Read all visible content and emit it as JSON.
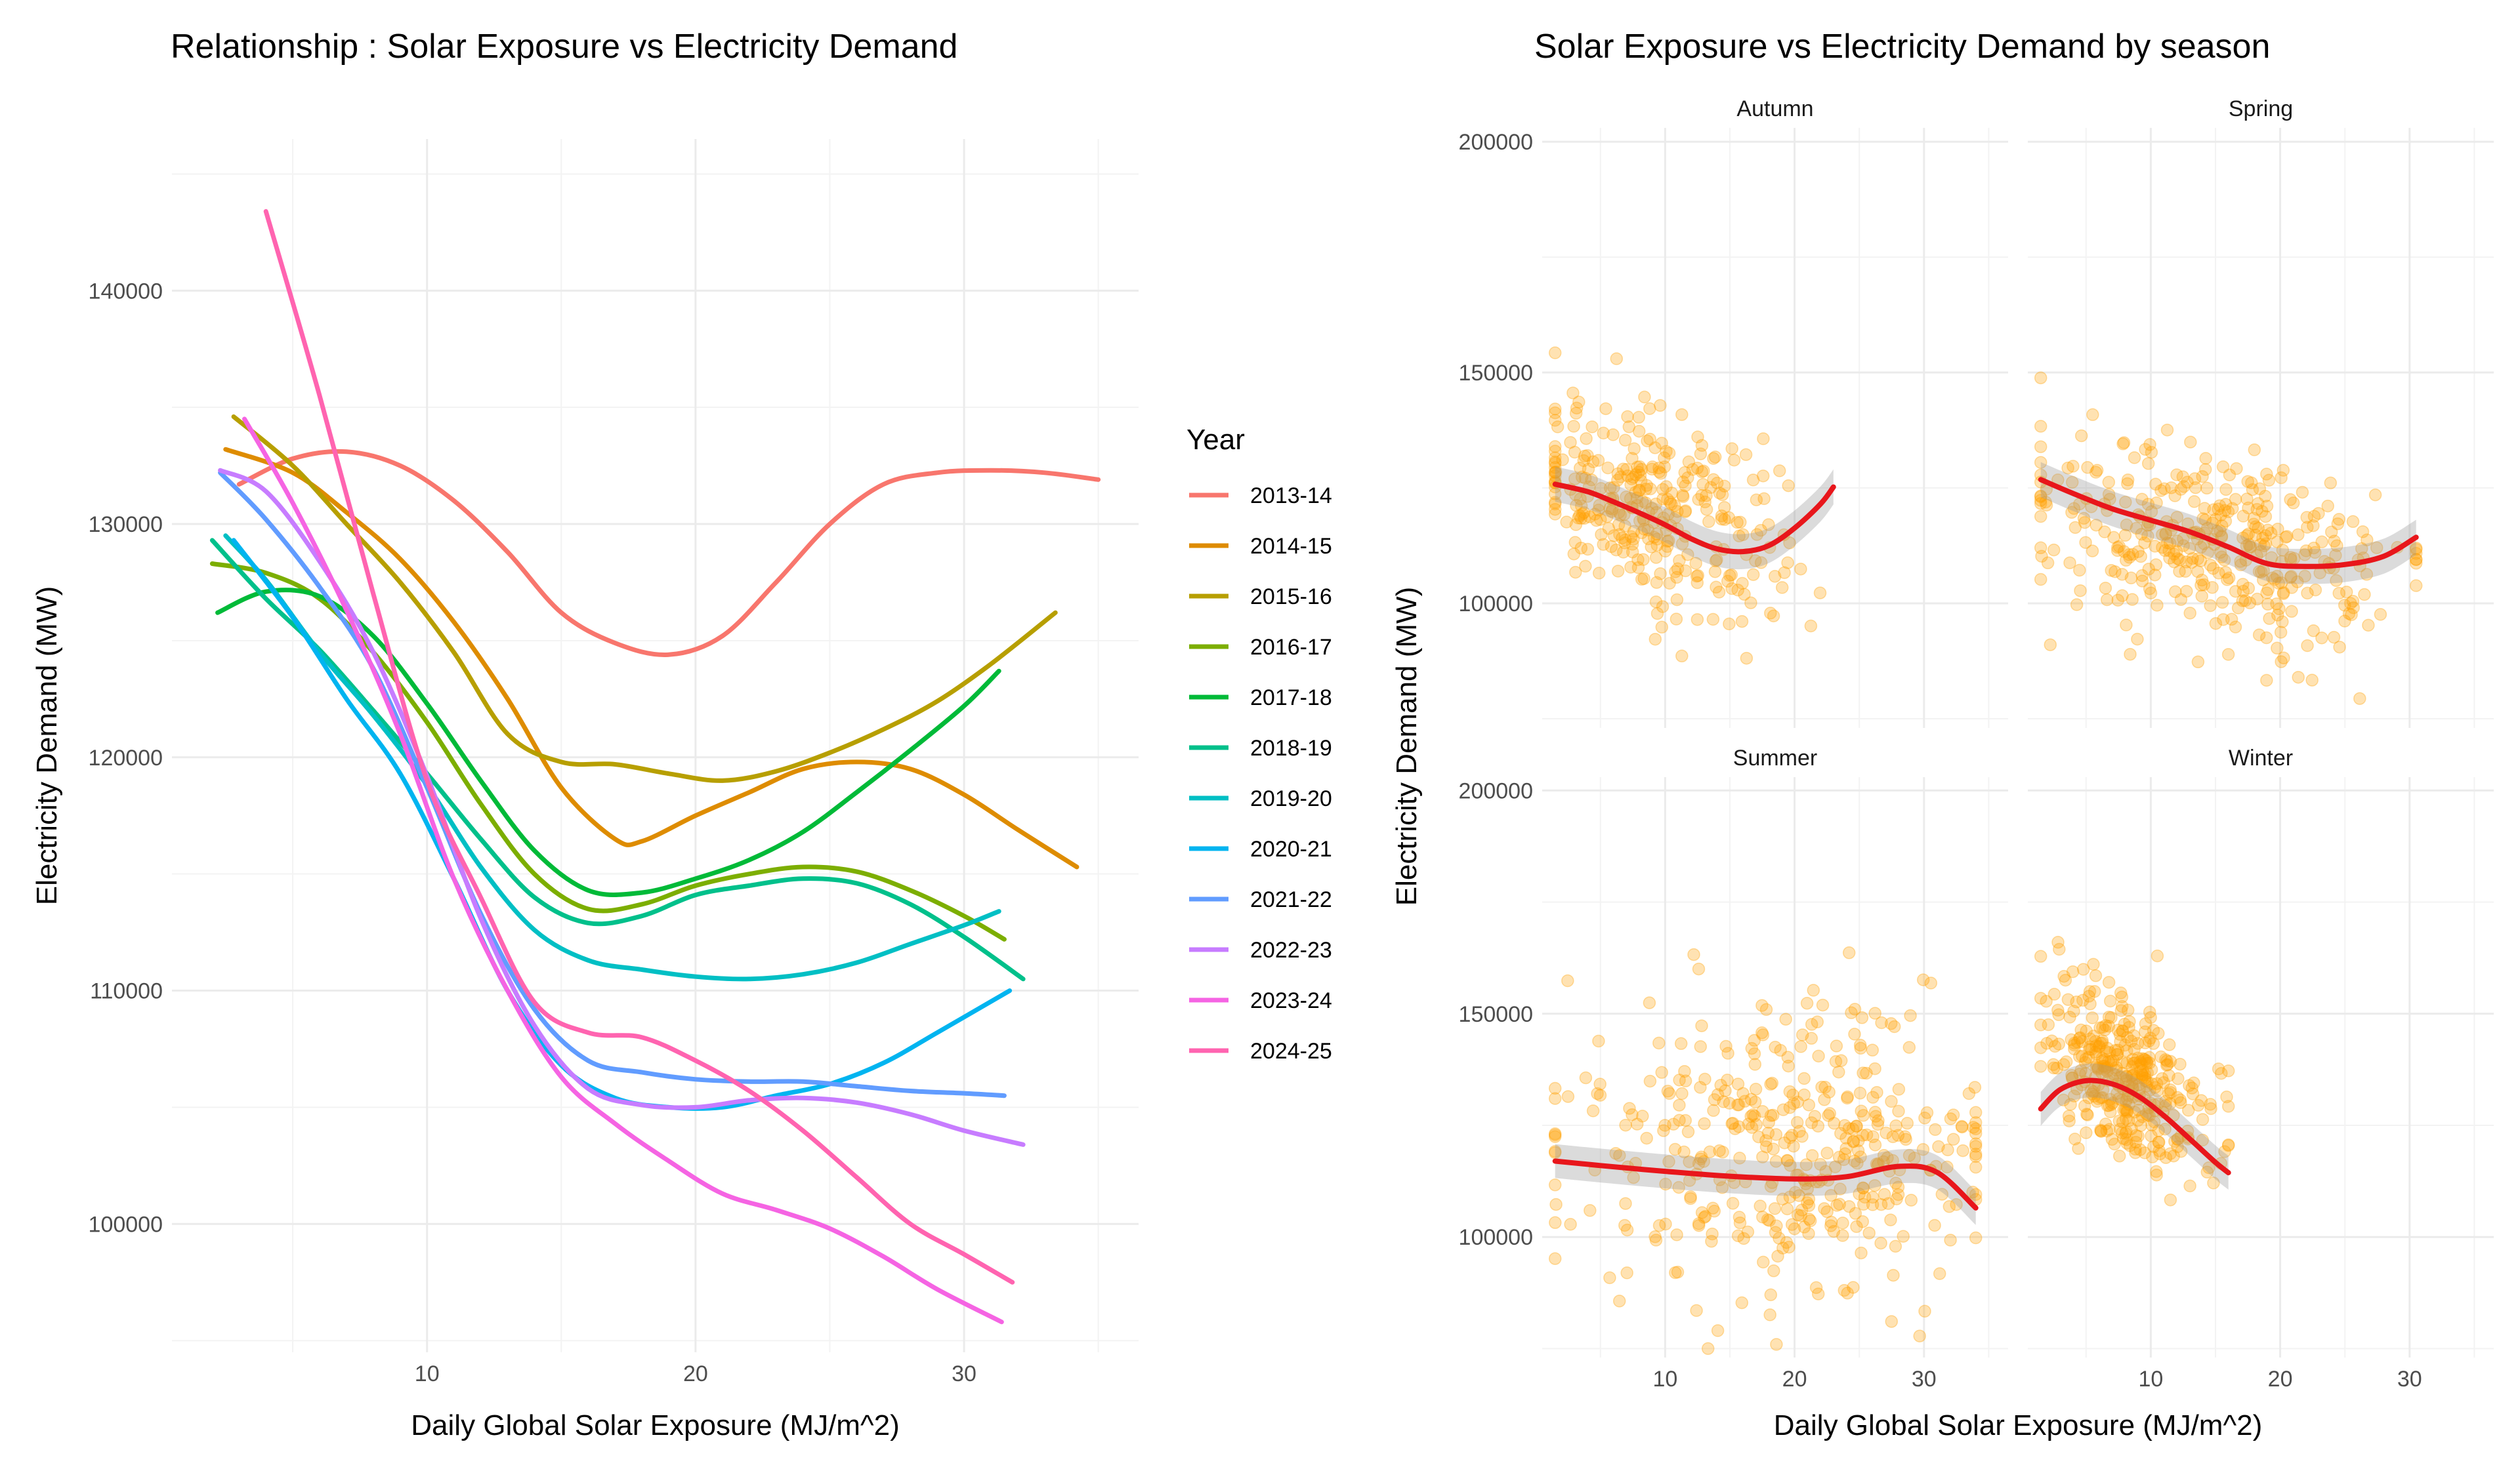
{
  "chart_data": [
    {
      "type": "line",
      "title": "Relationship : Solar Exposure vs Electricity Demand",
      "xlabel": "Daily Global Solar Exposure (MJ/m^2)",
      "ylabel": "Electricity Demand (MW)",
      "xlim": [
        0.5,
        36.5
      ],
      "ylim": [
        94500,
        146500
      ],
      "x_ticks": [
        10,
        20,
        30
      ],
      "y_ticks": [
        100000,
        110000,
        120000,
        130000,
        140000
      ],
      "y_tick_labels": [
        "100000",
        "110000",
        "120000",
        "130000",
        "140000"
      ],
      "grid": true,
      "legend": {
        "title": "Year",
        "position": "right"
      },
      "series": [
        {
          "name": "2013-14",
          "color": "#F8766D",
          "x": [
            3,
            5,
            7,
            9,
            11,
            13,
            15,
            17,
            19,
            21,
            23,
            25,
            27,
            29,
            31,
            33,
            35
          ],
          "y": [
            131700,
            132800,
            133100,
            132500,
            131000,
            128800,
            126200,
            124900,
            124400,
            125200,
            127500,
            130000,
            131700,
            132200,
            132300,
            132200,
            131900
          ]
        },
        {
          "name": "2014-15",
          "color": "#DE8C00",
          "x": [
            2.5,
            5,
            7,
            9,
            11,
            13,
            15,
            17,
            18,
            20,
            22,
            24,
            26,
            28,
            30,
            32,
            34.2
          ],
          "y": [
            133200,
            132200,
            130500,
            128500,
            125800,
            122500,
            118700,
            116500,
            116400,
            117500,
            118500,
            119500,
            119800,
            119500,
            118400,
            116900,
            115300
          ]
        },
        {
          "name": "2015-16",
          "color": "#B79F00",
          "x": [
            2.8,
            5,
            7,
            9,
            11,
            13,
            15,
            17,
            19,
            21,
            23,
            25,
            27,
            29,
            31,
            33.4
          ],
          "y": [
            134600,
            132500,
            130000,
            127500,
            124500,
            121000,
            119800,
            119700,
            119300,
            119000,
            119400,
            120200,
            121200,
            122400,
            124000,
            126200
          ]
        },
        {
          "name": "2016-17",
          "color": "#7CAE00",
          "x": [
            2,
            4,
            6,
            8,
            10,
            12,
            14,
            16,
            18,
            20,
            22,
            24,
            26,
            28,
            30,
            31.5
          ],
          "y": [
            128300,
            127900,
            126800,
            124500,
            121500,
            118000,
            115000,
            113500,
            113700,
            114500,
            115000,
            115300,
            115100,
            114300,
            113200,
            112200
          ]
        },
        {
          "name": "2017-18",
          "color": "#00BA38",
          "x": [
            2.2,
            4,
            6,
            8,
            10,
            12,
            14,
            16,
            18,
            20,
            22,
            24,
            26,
            28,
            30,
            31.3
          ],
          "y": [
            126200,
            127100,
            126900,
            125200,
            122300,
            119000,
            116000,
            114300,
            114200,
            114800,
            115600,
            116800,
            118500,
            120300,
            122200,
            123700
          ]
        },
        {
          "name": "2018-19",
          "color": "#00C08B",
          "x": [
            2,
            4,
            6,
            8,
            10,
            12,
            14,
            16,
            18,
            20,
            22,
            24,
            26,
            28,
            30,
            32.2
          ],
          "y": [
            129300,
            126800,
            124600,
            122000,
            119300,
            116500,
            114000,
            112900,
            113200,
            114100,
            114500,
            114800,
            114600,
            113700,
            112300,
            110500
          ]
        },
        {
          "name": "2019-20",
          "color": "#00BFC4",
          "x": [
            2.5,
            4,
            6,
            8,
            10,
            12,
            14,
            16,
            18,
            20,
            22,
            24,
            26,
            28,
            30,
            31.3
          ],
          "y": [
            129500,
            127600,
            124500,
            121800,
            118800,
            115300,
            112600,
            111300,
            110900,
            110600,
            110500,
            110700,
            111200,
            112000,
            112800,
            113400
          ]
        },
        {
          "name": "2020-21",
          "color": "#00B4F0",
          "x": [
            2.8,
            5,
            7,
            9,
            11,
            13,
            15,
            17,
            19,
            21,
            23,
            25,
            27,
            29,
            31.7
          ],
          "y": [
            129300,
            126000,
            122500,
            119300,
            114800,
            110000,
            106800,
            105400,
            105000,
            105000,
            105500,
            106000,
            106900,
            108200,
            110000
          ]
        },
        {
          "name": "2021-22",
          "color": "#619CFF",
          "x": [
            2.3,
            4,
            6,
            8,
            10,
            12,
            14,
            16,
            18,
            20,
            22,
            24,
            26,
            28,
            30,
            31.5
          ],
          "y": [
            132200,
            130200,
            127300,
            123800,
            118700,
            113300,
            109200,
            107000,
            106500,
            106200,
            106100,
            106100,
            105900,
            105700,
            105600,
            105500
          ]
        },
        {
          "name": "2022-23",
          "color": "#C77CFF",
          "x": [
            2.3,
            4,
            6,
            8,
            10,
            12,
            14,
            16,
            18,
            20,
            22,
            24,
            26,
            28,
            30,
            32.2
          ],
          "y": [
            132300,
            131400,
            128400,
            124500,
            119200,
            113100,
            108500,
            105800,
            105100,
            105000,
            105300,
            105400,
            105200,
            104700,
            104000,
            103400
          ]
        },
        {
          "name": "2023-24",
          "color": "#F564E3",
          "x": [
            3.2,
            5,
            7,
            9,
            11,
            13,
            15,
            17,
            19,
            21,
            23,
            25,
            27,
            29,
            31.4
          ],
          "y": [
            134500,
            130900,
            126300,
            121000,
            114800,
            110000,
            106300,
            104300,
            102700,
            101300,
            100600,
            99800,
            98600,
            97200,
            95800
          ]
        },
        {
          "name": "2024-25",
          "color": "#FF64B0",
          "x": [
            4,
            6,
            8,
            10,
            12,
            14,
            16,
            18,
            20,
            22,
            24,
            26,
            28,
            30,
            31.8
          ],
          "y": [
            143400,
            135500,
            127000,
            119000,
            114000,
            109500,
            108200,
            108000,
            107000,
            105700,
            104000,
            102000,
            100000,
            98700,
            97500
          ]
        }
      ]
    },
    {
      "type": "scatter",
      "title": "Solar Exposure vs Electricity Demand by season",
      "xlabel": "Daily Global Solar Exposure (MJ/m^2)",
      "ylabel": "Electricity Demand (MW)",
      "xlim": [
        0.5,
        36.5
      ],
      "ylim": [
        73000,
        203000
      ],
      "x_ticks": [
        10,
        20,
        30
      ],
      "y_ticks": [
        100000,
        150000,
        200000
      ],
      "y_tick_labels": [
        "100000",
        "150000",
        "200000"
      ],
      "grid": true,
      "point_color": "#FFA000",
      "smooth_color": "#E8161B",
      "panels": [
        {
          "name": "Autumn",
          "x_range": [
            1.5,
            23
          ],
          "center": [
            9,
            121000
          ],
          "spread": [
            5,
            10000
          ],
          "slope": -800,
          "count": 320,
          "smooth": {
            "x": [
              1.5,
              4,
              6,
              8,
              10,
              12,
              14,
              16,
              18,
              20,
              22,
              23
            ],
            "y": [
              125800,
              124200,
              122000,
              119600,
              117000,
              114000,
              111800,
              111200,
              112500,
              116300,
              121500,
              125200
            ]
          }
        },
        {
          "name": "Spring",
          "x_range": [
            1.5,
            30.5
          ],
          "center": [
            15,
            112000
          ],
          "spread": [
            7,
            10000
          ],
          "slope": -600,
          "count": 380,
          "smooth": {
            "x": [
              1.5,
              4,
              7,
              10,
              13,
              16,
              19,
              22,
              25,
              28,
              30.5
            ],
            "y": [
              126800,
              123800,
              120500,
              118000,
              115500,
              112200,
              108600,
              108000,
              108400,
              110200,
              114300
            ]
          }
        },
        {
          "name": "Summer",
          "x_range": [
            1.5,
            34
          ],
          "center": [
            20,
            118000
          ],
          "spread": [
            8,
            17000
          ],
          "slope": 0,
          "count": 420,
          "smooth": {
            "x": [
              1.5,
              5,
              10,
              15,
              20,
              24,
              28,
              31,
              34
            ],
            "y": [
              117000,
              116000,
              114700,
              113600,
              113000,
              113500,
              115800,
              114500,
              106500
            ]
          }
        },
        {
          "name": "Winter",
          "x_range": [
            1.5,
            16
          ],
          "center": [
            8,
            135000
          ],
          "spread": [
            3.2,
            9000
          ],
          "slope": -1500,
          "count": 360,
          "smooth": {
            "x": [
              1.5,
              3,
              5,
              7,
              9,
              11,
              13,
              15,
              16
            ],
            "y": [
              128700,
              133000,
              135000,
              134300,
              131600,
              127200,
              122000,
              116700,
              114400
            ]
          }
        }
      ]
    }
  ]
}
